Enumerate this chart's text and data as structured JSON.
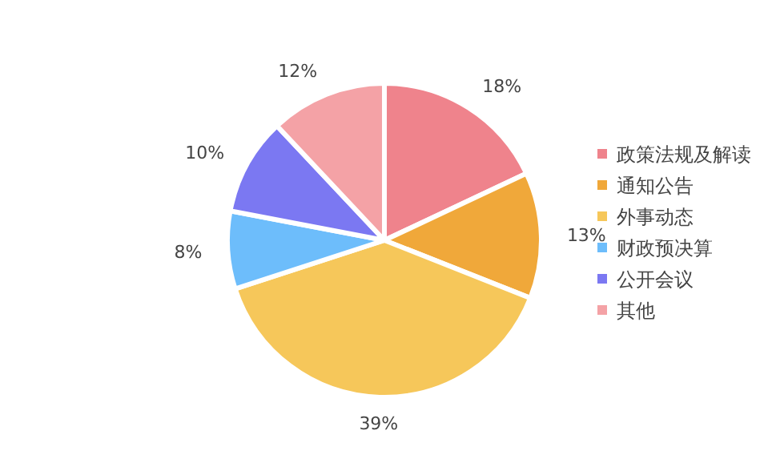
{
  "chart_data": {
    "type": "pie",
    "categories": [
      "政策法规及解读",
      "通知公告",
      "外事动态",
      "财政预决算",
      "公开会议",
      "其他"
    ],
    "values": [
      18,
      13,
      39,
      8,
      10,
      12
    ],
    "value_labels": [
      "18%",
      "13%",
      "39%",
      "8%",
      "10%",
      "12%"
    ],
    "colors": [
      "#ef838c",
      "#f0a83a",
      "#f6c75a",
      "#6dbdfb",
      "#7b78f2",
      "#f4a2a6"
    ],
    "legend": "right"
  }
}
